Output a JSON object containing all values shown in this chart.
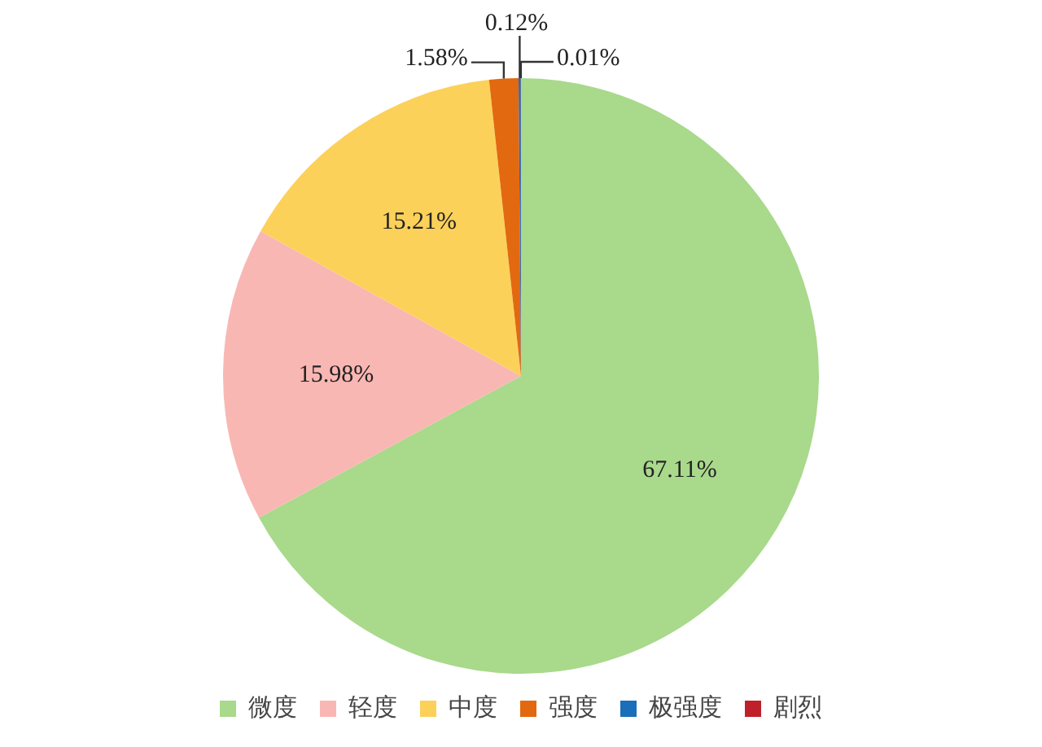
{
  "chart_data": {
    "type": "pie",
    "categories": [
      "微度",
      "轻度",
      "中度",
      "强度",
      "极强度",
      "剧烈"
    ],
    "values": [
      67.11,
      15.98,
      15.21,
      1.58,
      0.12,
      0.01
    ],
    "colors": [
      "#a9d98b",
      "#f9b7b3",
      "#fcd15a",
      "#e2690f",
      "#1b6eb9",
      "#c0202a"
    ],
    "value_labels": [
      "67.11%",
      "15.98%",
      "15.21%",
      "1.58%",
      "0.12%",
      "0.01%"
    ],
    "legend": "bottom"
  }
}
